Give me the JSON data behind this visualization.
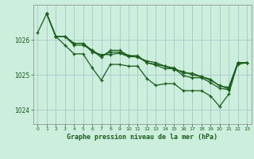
{
  "title": "Graphe pression niveau de la mer (hPa)",
  "background_color": "#cceedd",
  "grid_color": "#aacccc",
  "line_color": "#1a5c1a",
  "xlim": [
    -0.5,
    23.5
  ],
  "ylim": [
    1023.6,
    1027.0
  ],
  "x_ticks": [
    0,
    1,
    2,
    3,
    4,
    5,
    6,
    7,
    8,
    9,
    10,
    11,
    12,
    13,
    14,
    15,
    16,
    17,
    18,
    19,
    20,
    21,
    22,
    23
  ],
  "y_ticks": [
    1024,
    1025,
    1026
  ],
  "series": [
    [
      1026.2,
      1026.75,
      1026.1,
      1025.85,
      1025.6,
      1025.6,
      1025.2,
      1024.85,
      1025.3,
      1025.3,
      1025.25,
      1025.25,
      1024.9,
      1024.7,
      1024.75,
      1024.75,
      1024.55,
      1024.55,
      1024.55,
      1024.4,
      1024.1,
      1024.45,
      1025.35,
      null
    ],
    [
      null,
      1026.75,
      1026.1,
      1026.1,
      1025.85,
      1025.85,
      1025.7,
      1025.5,
      1025.7,
      1025.7,
      1025.55,
      1025.55,
      1025.35,
      1025.3,
      1025.25,
      1025.15,
      1025.1,
      1025.0,
      1024.95,
      1024.85,
      1024.7,
      1024.6,
      1025.3,
      1025.35
    ],
    [
      null,
      1026.75,
      1026.1,
      1026.1,
      1025.9,
      1025.9,
      1025.7,
      1025.55,
      1025.65,
      1025.65,
      1025.55,
      1025.5,
      1025.4,
      1025.35,
      1025.25,
      1025.2,
      1025.05,
      1025.05,
      1024.95,
      1024.88,
      1024.68,
      1024.65,
      1025.35,
      1025.35
    ],
    [
      null,
      1026.75,
      1026.1,
      1026.1,
      1025.9,
      1025.9,
      1025.65,
      1025.58,
      1025.58,
      1025.62,
      1025.52,
      1025.52,
      1025.35,
      1025.28,
      1025.18,
      1025.18,
      1024.98,
      1024.92,
      1024.92,
      1024.78,
      1024.62,
      1024.58,
      1025.35,
      1025.35
    ]
  ]
}
